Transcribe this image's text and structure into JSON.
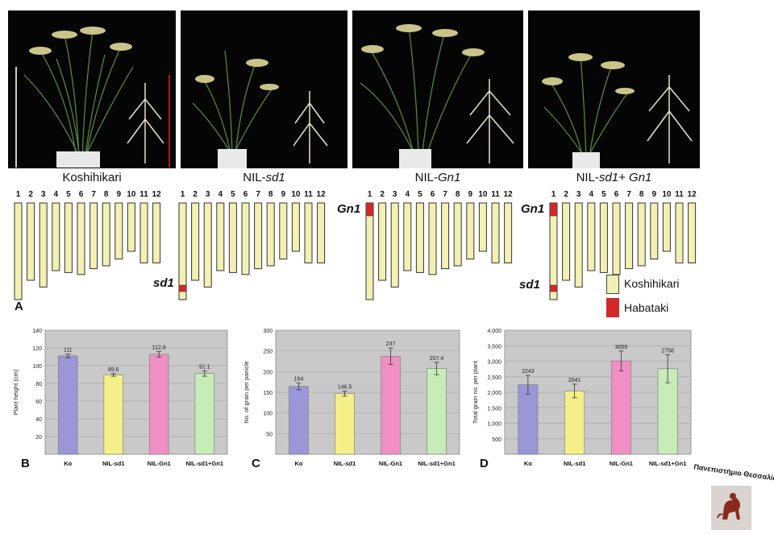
{
  "strains": [
    {
      "prefix": "Koshihikari",
      "gene": "",
      "suffix": ""
    },
    {
      "prefix": "NIL-",
      "gene": "sd1",
      "suffix": ""
    },
    {
      "prefix": "NIL-",
      "gene": "Gn1",
      "suffix": ""
    },
    {
      "prefix": "NIL-",
      "gene": "sd1+ Gn1",
      "suffix": ""
    }
  ],
  "panel_letters": {
    "a": "A",
    "b": "B",
    "c": "C",
    "d": "D"
  },
  "chromosome_numbers": [
    "1",
    "2",
    "3",
    "4",
    "5",
    "6",
    "7",
    "8",
    "9",
    "10",
    "11",
    "12"
  ],
  "chromosome_relative_lengths": [
    1.0,
    0.8,
    0.87,
    0.7,
    0.72,
    0.74,
    0.68,
    0.65,
    0.58,
    0.5,
    0.62,
    0.62
  ],
  "locus_labels": {
    "sd1": "sd1",
    "gn1": "Gn1"
  },
  "legend": {
    "koshihikari": "Koshihikari",
    "habataki": "Habataki"
  },
  "colors": {
    "koshihikari": "#f3f0b3",
    "habataki": "#d3282a",
    "bar_ko": "#9b96d8",
    "bar_sd1": "#f4ef88",
    "bar_gn1": "#f08fc4",
    "bar_sd1gn1": "#c8ecb8",
    "chart_bg": "#c9c9c9"
  },
  "chart_data": [
    {
      "type": "bar",
      "ylabel": "Plant height (cm)",
      "categories": [
        "Ko",
        "NIL-sd1",
        "NIL-Gn1",
        "NIL-sd1+Gn1"
      ],
      "values": [
        111,
        89.6,
        112.8,
        91.1
      ],
      "value_labels": [
        "111",
        "89.6",
        "112.8",
        "91.1"
      ],
      "errors": [
        2,
        1.5,
        3,
        3
      ],
      "ylim": [
        0,
        140
      ],
      "yticks": [
        "",
        "20",
        "40",
        "60",
        "80",
        "100",
        "120",
        "140"
      ],
      "grid": true
    },
    {
      "type": "bar",
      "ylabel": "No. of grain per panicle",
      "categories": [
        "Ko",
        "NIL-sd1",
        "NIL-Gn1",
        "NIL-sd1+Gn1"
      ],
      "values": [
        164,
        146.5,
        237,
        207.4
      ],
      "value_labels": [
        "164",
        "146.5",
        "237",
        "207.4"
      ],
      "errors": [
        8,
        6,
        20,
        15
      ],
      "ylim": [
        0,
        300
      ],
      "yticks": [
        "",
        "50",
        "100",
        "150",
        "200",
        "250",
        "300"
      ],
      "grid": true
    },
    {
      "type": "bar",
      "ylabel": "Total grain no. per plant",
      "categories": [
        "Ko",
        "NIL-sd1",
        "NIL-Gn1",
        "NIL-sd1+Gn1"
      ],
      "values": [
        2243,
        2041,
        3009,
        2758
      ],
      "value_labels": [
        "2243",
        "2041",
        "3009",
        "2758"
      ],
      "errors": [
        300,
        220,
        320,
        450
      ],
      "ylim": [
        0,
        4000
      ],
      "yticks": [
        "",
        "500",
        "1,000",
        "1,500",
        "2,000",
        "2,500",
        "3,000",
        "3,500",
        "4,000"
      ],
      "grid": true
    }
  ],
  "university_logo_text": "Πανεπιστήμιο Θεσσαλίας"
}
